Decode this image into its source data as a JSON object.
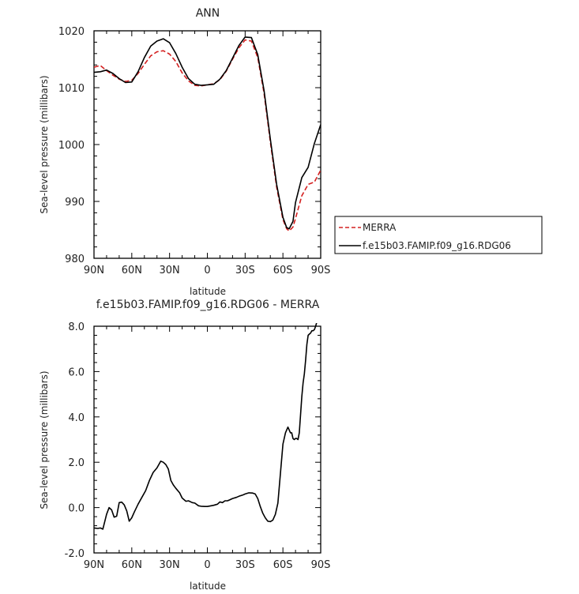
{
  "chart_data": [
    {
      "type": "line",
      "title": "ANN",
      "xlabel": "latitude",
      "ylabel": "Sea-level pressure (millibars)",
      "x_ticks": [
        "90N",
        "60N",
        "30N",
        "0",
        "30S",
        "60S",
        "90S"
      ],
      "x_tick_values": [
        90,
        60,
        30,
        0,
        -30,
        -60,
        -90
      ],
      "y_ticks": [
        "980",
        "990",
        "1000",
        "1010",
        "1020"
      ],
      "y_tick_values": [
        980,
        990,
        1000,
        1010,
        1020
      ],
      "xlim": [
        90,
        -90
      ],
      "ylim": [
        980,
        1020
      ],
      "grid": false,
      "legend_position": "right",
      "series": [
        {
          "name": "MERRA",
          "color": "#d42020",
          "dash": "dashed",
          "x": [
            90,
            85,
            80,
            75,
            70,
            65,
            60,
            55,
            50,
            45,
            40,
            35,
            30,
            25,
            20,
            15,
            10,
            5,
            0,
            -5,
            -10,
            -15,
            -20,
            -25,
            -30,
            -35,
            -40,
            -45,
            -50,
            -55,
            -60,
            -63,
            -65,
            -68,
            -70,
            -75,
            -80,
            -85,
            -90
          ],
          "values": [
            1013.6,
            1013.9,
            1013.0,
            1012.2,
            1011.5,
            1011.1,
            1011.3,
            1012.5,
            1014.1,
            1015.6,
            1016.3,
            1016.5,
            1015.9,
            1014.6,
            1012.6,
            1011.2,
            1010.4,
            1010.3,
            1010.5,
            1010.7,
            1011.4,
            1012.9,
            1015.0,
            1017.0,
            1018.4,
            1018.2,
            1015.3,
            1009.0,
            1000.5,
            992.5,
            986.8,
            985.2,
            984.8,
            985.5,
            987.0,
            991.0,
            993.0,
            993.4,
            995.5
          ]
        },
        {
          "name": "f.e15b03.FAMIP.f09_g16.RDG06",
          "color": "#000000",
          "dash": "solid",
          "x": [
            90,
            85,
            80,
            75,
            70,
            65,
            60,
            55,
            50,
            45,
            40,
            35,
            30,
            25,
            20,
            15,
            10,
            5,
            0,
            -5,
            -10,
            -15,
            -20,
            -25,
            -30,
            -35,
            -40,
            -45,
            -50,
            -55,
            -60,
            -63,
            -65,
            -68,
            -70,
            -75,
            -80,
            -85,
            -90
          ],
          "values": [
            1012.7,
            1012.8,
            1013.1,
            1012.5,
            1011.6,
            1010.9,
            1011.0,
            1012.8,
            1015.3,
            1017.3,
            1018.2,
            1018.6,
            1017.9,
            1016.0,
            1013.6,
            1011.6,
            1010.6,
            1010.4,
            1010.5,
            1010.6,
            1011.5,
            1013.0,
            1015.2,
            1017.4,
            1018.9,
            1018.8,
            1015.8,
            1009.5,
            1001.0,
            993.0,
            987.2,
            985.4,
            985.2,
            986.5,
            989.8,
            994.2,
            996.0,
            1000.2,
            1003.5
          ]
        }
      ]
    },
    {
      "type": "line",
      "title": "f.e15b03.FAMIP.f09_g16.RDG06 - MERRA",
      "xlabel": "latitude",
      "ylabel": "Sea-level pressure (millibars)",
      "x_ticks": [
        "90N",
        "60N",
        "30N",
        "0",
        "30S",
        "60S",
        "90S"
      ],
      "x_tick_values": [
        90,
        60,
        30,
        0,
        -30,
        -60,
        -90
      ],
      "y_ticks": [
        "-2.0",
        "0.0",
        "2.0",
        "4.0",
        "6.0",
        "8.0"
      ],
      "y_tick_values": [
        -2,
        0,
        2,
        4,
        6,
        8
      ],
      "xlim": [
        90,
        -90
      ],
      "ylim": [
        -2,
        8
      ],
      "grid": false,
      "series": [
        {
          "color": "#000000",
          "x": [
            90,
            87,
            85,
            83,
            80,
            78,
            76,
            74,
            72,
            70,
            68,
            66,
            64,
            62,
            60,
            58,
            55,
            52,
            49,
            46,
            43,
            40,
            37,
            35,
            33,
            31,
            29,
            27,
            25,
            22,
            20,
            17,
            15,
            12,
            10,
            7,
            5,
            2,
            0,
            -3,
            -5,
            -8,
            -10,
            -12,
            -14,
            -16,
            -18,
            -20,
            -23,
            -25,
            -28,
            -30,
            -33,
            -36,
            -38,
            -40,
            -42,
            -44,
            -46,
            -48,
            -50,
            -52,
            -54,
            -56,
            -58,
            -60,
            -62,
            -64,
            -66,
            -67,
            -68,
            -69,
            -70,
            -71,
            -72,
            -73,
            -74,
            -75,
            -76,
            -77,
            -78,
            -79,
            -80,
            -81,
            -82,
            -83,
            -84,
            -85,
            -86,
            -87,
            -88,
            -89,
            -90
          ],
          "values": [
            -0.9,
            -0.92,
            -0.9,
            -0.95,
            -0.3,
            0.0,
            -0.1,
            -0.42,
            -0.38,
            0.22,
            0.24,
            0.12,
            -0.15,
            -0.6,
            -0.45,
            -0.2,
            0.15,
            0.45,
            0.75,
            1.2,
            1.55,
            1.75,
            2.05,
            2.0,
            1.9,
            1.7,
            1.2,
            1.0,
            0.85,
            0.65,
            0.42,
            0.28,
            0.3,
            0.22,
            0.2,
            0.08,
            0.06,
            0.05,
            0.05,
            0.08,
            0.1,
            0.15,
            0.25,
            0.22,
            0.3,
            0.3,
            0.35,
            0.4,
            0.45,
            0.5,
            0.55,
            0.6,
            0.65,
            0.64,
            0.6,
            0.4,
            0.05,
            -0.25,
            -0.45,
            -0.6,
            -0.62,
            -0.55,
            -0.3,
            0.2,
            1.5,
            2.8,
            3.3,
            3.55,
            3.3,
            3.3,
            3.05,
            3.0,
            3.05,
            3.05,
            3.0,
            3.3,
            4.1,
            4.9,
            5.5,
            5.9,
            6.5,
            7.2,
            7.6,
            7.65,
            7.7,
            7.8,
            7.8,
            7.85,
            8.0,
            8.2,
            8.3,
            8.5,
            8.6
          ]
        }
      ]
    }
  ]
}
